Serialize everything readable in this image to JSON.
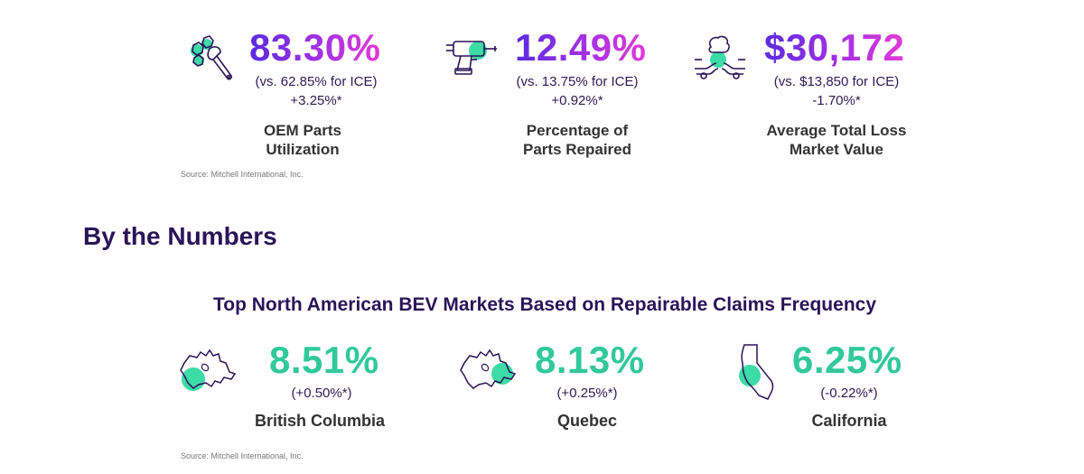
{
  "top_stats": [
    {
      "value": "83.30%",
      "comparison": "(vs. 62.85% for ICE)",
      "change": "+3.25%*",
      "label_line1": "OEM Parts",
      "label_line2": "Utilization",
      "icon": "wrench-bolts-icon"
    },
    {
      "value": "12.49%",
      "comparison": "(vs. 13.75% for ICE)",
      "change": "+0.92%*",
      "label_line1": "Percentage of",
      "label_line2": "Parts Repaired",
      "icon": "drill-icon"
    },
    {
      "value": "$30,172",
      "comparison": "(vs. $13,850 for ICE)",
      "change": "-1.70%*",
      "label_line1": "Average Total Loss",
      "label_line2": "Market Value",
      "icon": "car-crash-icon"
    }
  ],
  "source_top": "Source: Mitchell International, Inc.",
  "section_title": "By the Numbers",
  "markets_title": "Top North American BEV Markets Based on Repairable Claims Frequency",
  "markets": [
    {
      "value": "8.51%",
      "change": "(+0.50%*)",
      "label": "British Columbia",
      "icon": "canada-map-icon"
    },
    {
      "value": "8.13%",
      "change": "(+0.25%*)",
      "label": "Quebec",
      "icon": "canada-map-icon"
    },
    {
      "value": "6.25%",
      "change": "(-0.22%*)",
      "label": "California",
      "icon": "california-map-icon"
    }
  ],
  "source_bottom": "Source: Mitchell International, Inc.",
  "colors": {
    "purple_start": "#5b2be0",
    "pink_end": "#e23ad8",
    "green": "#31c99a",
    "navy": "#2a1458"
  }
}
